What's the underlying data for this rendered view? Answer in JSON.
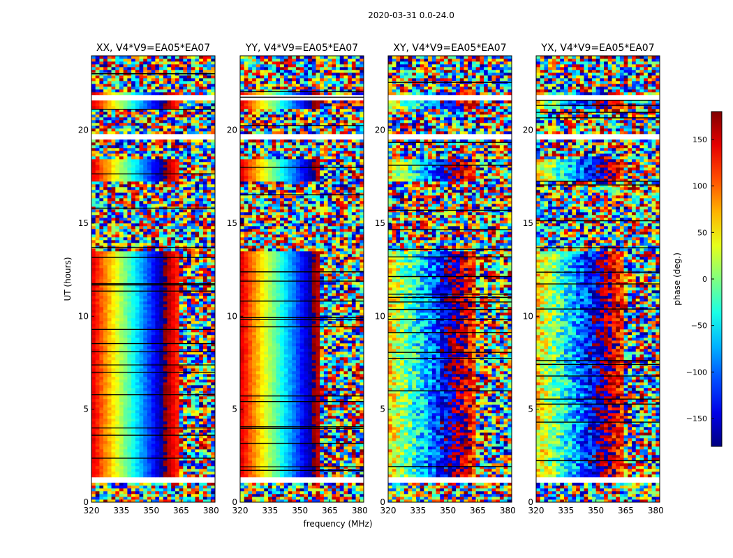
{
  "figure": {
    "suptitle": "2020-03-31 0.0-24.0",
    "xlabel": "frequency (MHz)",
    "ylabel": "UT (hours)"
  },
  "chart_data": {
    "type": "heatmap",
    "quantity": "visibility phase vs frequency and time",
    "xlim": [
      320,
      382
    ],
    "ylim": [
      0,
      24
    ],
    "xticks": [
      320,
      335,
      350,
      365,
      380
    ],
    "yticks": [
      0,
      5,
      10,
      15,
      20
    ],
    "xlabel": "frequency (MHz)",
    "ylabel": "UT (hours)",
    "panels": [
      {
        "title": "XX, V4*V9=EA05*EA07",
        "pol": "XX",
        "phase_wrap_start_mhz": 336,
        "color_edge_mhz": 364,
        "coherent": true
      },
      {
        "title": "YY, V4*V9=EA05*EA07",
        "pol": "YY",
        "phase_wrap_start_mhz": 333,
        "color_edge_mhz": 361,
        "coherent": true
      },
      {
        "title": "XY, V4*V9=EA05*EA07",
        "pol": "XY",
        "phase_wrap_start_mhz": 345,
        "color_edge_mhz": 365,
        "coherent": false
      },
      {
        "title": "YX, V4*V9=EA05*EA07",
        "pol": "YX",
        "phase_wrap_start_mhz": 340,
        "color_edge_mhz": 365,
        "coherent": false
      }
    ],
    "colorbar": {
      "label": "phase (deg.)",
      "min": -180,
      "max": 180,
      "ticks": [
        -150,
        -100,
        -50,
        0,
        50,
        100,
        150
      ],
      "colormap": "jet"
    },
    "coherent_hours": [
      [
        1.2,
        13.5
      ],
      [
        17.3,
        18.4
      ],
      [
        21.2,
        22.0
      ]
    ],
    "flagged_hours": [
      [
        1.1,
        1.3
      ],
      [
        19.5,
        19.8
      ],
      [
        21.6,
        21.9
      ]
    ]
  }
}
